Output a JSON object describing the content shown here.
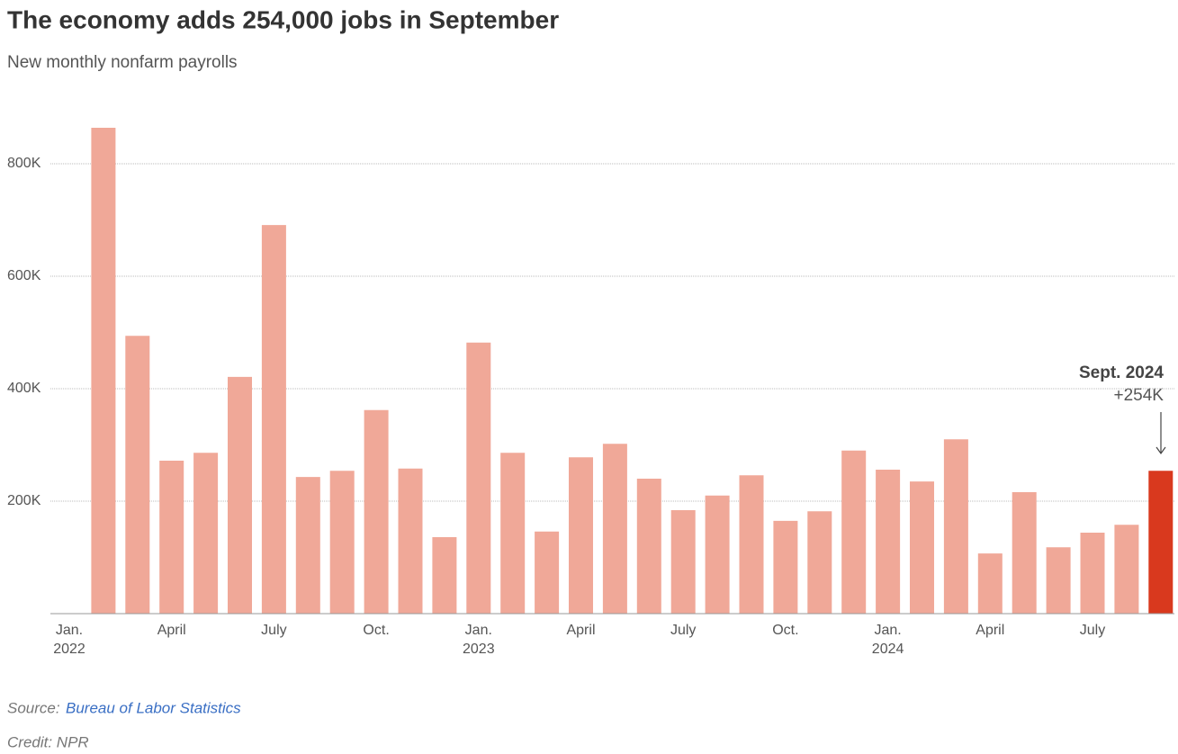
{
  "chart_data": {
    "type": "bar",
    "title": "The economy adds 254,000 jobs in September",
    "subtitle": "New monthly nonfarm payrolls",
    "categories": [
      "Jan.",
      null,
      null,
      "April",
      null,
      null,
      "July",
      null,
      null,
      "Oct.",
      null,
      null,
      "Jan.",
      null,
      null,
      "April",
      null,
      null,
      "July",
      null,
      null,
      "Oct.",
      null,
      null,
      "Jan.",
      null,
      null,
      "April",
      null,
      null,
      "July",
      null,
      null
    ],
    "category_years": [
      "2022",
      null,
      null,
      null,
      null,
      null,
      null,
      null,
      null,
      null,
      null,
      null,
      "2023",
      null,
      null,
      null,
      null,
      null,
      null,
      null,
      null,
      null,
      null,
      null,
      "2024",
      null,
      null,
      null,
      null,
      null,
      null,
      null,
      null
    ],
    "values": [
      null,
      864000,
      494000,
      272000,
      286000,
      421000,
      691000,
      243000,
      254000,
      362000,
      258000,
      136000,
      482000,
      286000,
      146000,
      278000,
      302000,
      240000,
      184000,
      210000,
      246000,
      165000,
      182000,
      290000,
      256000,
      235000,
      310000,
      107000,
      216000,
      118000,
      144000,
      158000,
      254000
    ],
    "colors": [
      null,
      "#f0a898",
      "#f0a898",
      "#f0a898",
      "#f0a898",
      "#f0a898",
      "#f0a898",
      "#f0a898",
      "#f0a898",
      "#f0a898",
      "#f0a898",
      "#f0a898",
      "#f0a898",
      "#f0a898",
      "#f0a898",
      "#f0a898",
      "#f0a898",
      "#f0a898",
      "#f0a898",
      "#f0a898",
      "#f0a898",
      "#f0a898",
      "#f0a898",
      "#f0a898",
      "#f0a898",
      "#f0a898",
      "#f0a898",
      "#f0a898",
      "#f0a898",
      "#f0a898",
      "#f0a898",
      "#f0a898",
      "#d9391e"
    ],
    "ylim": [
      0,
      900000
    ],
    "yticks": [
      {
        "value": 200000,
        "label": "200K"
      },
      {
        "value": 400000,
        "label": "400K"
      },
      {
        "value": 600000,
        "label": "600K"
      },
      {
        "value": 800000,
        "label": "800K"
      }
    ],
    "grid": true,
    "annotation": {
      "title": "Sept. 2024",
      "text": "+254K"
    },
    "source_label": "Source:",
    "source": "Bureau of Labor Statistics",
    "credit": "Credit: NPR"
  }
}
